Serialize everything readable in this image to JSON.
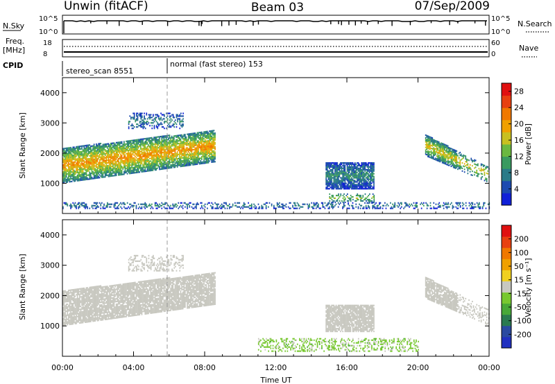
{
  "header": {
    "station": "Unwin (fitACF)",
    "beam": "Beam 03",
    "date": "07/Sep/2009"
  },
  "status_panels": {
    "nsky_label": "N.Sky",
    "nsky_ticks": [
      "10^5",
      "10^0"
    ],
    "nsearch_label": "N.Search",
    "nsearch_ticks": [
      "10^5",
      "10^0"
    ],
    "freq_label": "Freq.",
    "freq_unit": "[MHz]",
    "freq_ticks": [
      "18",
      "8"
    ],
    "nave_label": "Nave",
    "nave_ticks": [
      "60",
      "0"
    ],
    "cpid_label": "CPID",
    "cpid_entries": [
      "stereo_scan 8551",
      "normal (fast stereo) 153"
    ]
  },
  "chart_data": [
    {
      "type": "heatmap",
      "name": "power",
      "ylabel": "Slant Range [km]",
      "xlabel": "",
      "ylim": [
        0,
        4500
      ],
      "xlim": [
        "00:00",
        "24:00"
      ],
      "yticks": [
        "1000",
        "2000",
        "3000",
        "4000"
      ],
      "xticks": [
        "00:00",
        "04:00",
        "08:00",
        "12:00",
        "16:00",
        "20:00",
        "00:00"
      ],
      "colorbar": {
        "label": "Power [dB]",
        "ticks": [
          "4",
          "8",
          "12",
          "16",
          "20",
          "24",
          "28"
        ],
        "range": [
          0,
          30
        ],
        "colors": [
          "#1020d8",
          "#1c4ab0",
          "#2a7a88",
          "#3a9a60",
          "#6ab840",
          "#c8c020",
          "#f0a000",
          "#f07800",
          "#e84010",
          "#e01010"
        ]
      },
      "echo_regions": [
        {
          "t_start": 0.0,
          "t_end": 8.6,
          "range_min_start": 1000,
          "range_max_start": 2150,
          "range_min_end": 1700,
          "range_max_end": 2750,
          "typical_power_db": 14
        },
        {
          "t_start": 3.7,
          "t_end": 6.8,
          "range_min": 2800,
          "range_max": 3300,
          "typical_power_db": 6
        },
        {
          "t_start": 14.8,
          "t_end": 17.5,
          "range_min": 800,
          "range_max": 1700,
          "typical_power_db": 6
        },
        {
          "t_start": 15.0,
          "t_end": 17.5,
          "range_min": 350,
          "range_max": 650,
          "typical_power_db": 10
        },
        {
          "t_start": 20.4,
          "t_end": 24.0,
          "range_min_start": 1900,
          "range_max_start": 2600,
          "range_min_end": 1000,
          "range_max_end": 1500,
          "typical_power_db": 12
        },
        {
          "t_start": 0.0,
          "t_end": 24.0,
          "range_min": 150,
          "range_max": 350,
          "typical_power_db": 6
        }
      ]
    },
    {
      "type": "heatmap",
      "name": "velocity",
      "ylabel": "Slant Range [km]",
      "xlabel": "Time UT",
      "ylim": [
        0,
        4500
      ],
      "xlim": [
        "00:00",
        "24:00"
      ],
      "yticks": [
        "1000",
        "2000",
        "3000",
        "4000"
      ],
      "xticks": [
        "00:00",
        "04:00",
        "08:00",
        "12:00",
        "16:00",
        "20:00",
        "00:00"
      ],
      "colorbar": {
        "label": "Velocity [m s⁻¹]",
        "ticks": [
          "200",
          "100",
          "50",
          "15",
          "-15",
          "-50",
          "-100",
          "-200"
        ],
        "range": [
          -250,
          250
        ],
        "colors": [
          "#2030c0",
          "#2a4aa0",
          "#2a7a50",
          "#48a838",
          "#78c830",
          "#c8c8c0",
          "#f0d020",
          "#f0a000",
          "#f07800",
          "#e84010",
          "#e01010"
        ]
      },
      "echo_regions": [
        {
          "t_start": 0.0,
          "t_end": 8.6,
          "range_min_start": 1000,
          "range_max_start": 2150,
          "range_min_end": 1700,
          "range_max_end": 2750,
          "typical_velocity": 0
        },
        {
          "t_start": 3.7,
          "t_end": 6.8,
          "range_min": 2800,
          "range_max": 3300,
          "typical_velocity": 0
        },
        {
          "t_start": 14.8,
          "t_end": 17.5,
          "range_min": 800,
          "range_max": 1700,
          "typical_velocity": 0
        },
        {
          "t_start": 11.0,
          "t_end": 20.0,
          "range_min": 150,
          "range_max": 600,
          "typical_velocity": -40
        },
        {
          "t_start": 20.4,
          "t_end": 24.0,
          "range_min_start": 1900,
          "range_max_start": 2600,
          "range_min_end": 1000,
          "range_max_end": 1500,
          "typical_velocity": 0
        }
      ]
    }
  ]
}
